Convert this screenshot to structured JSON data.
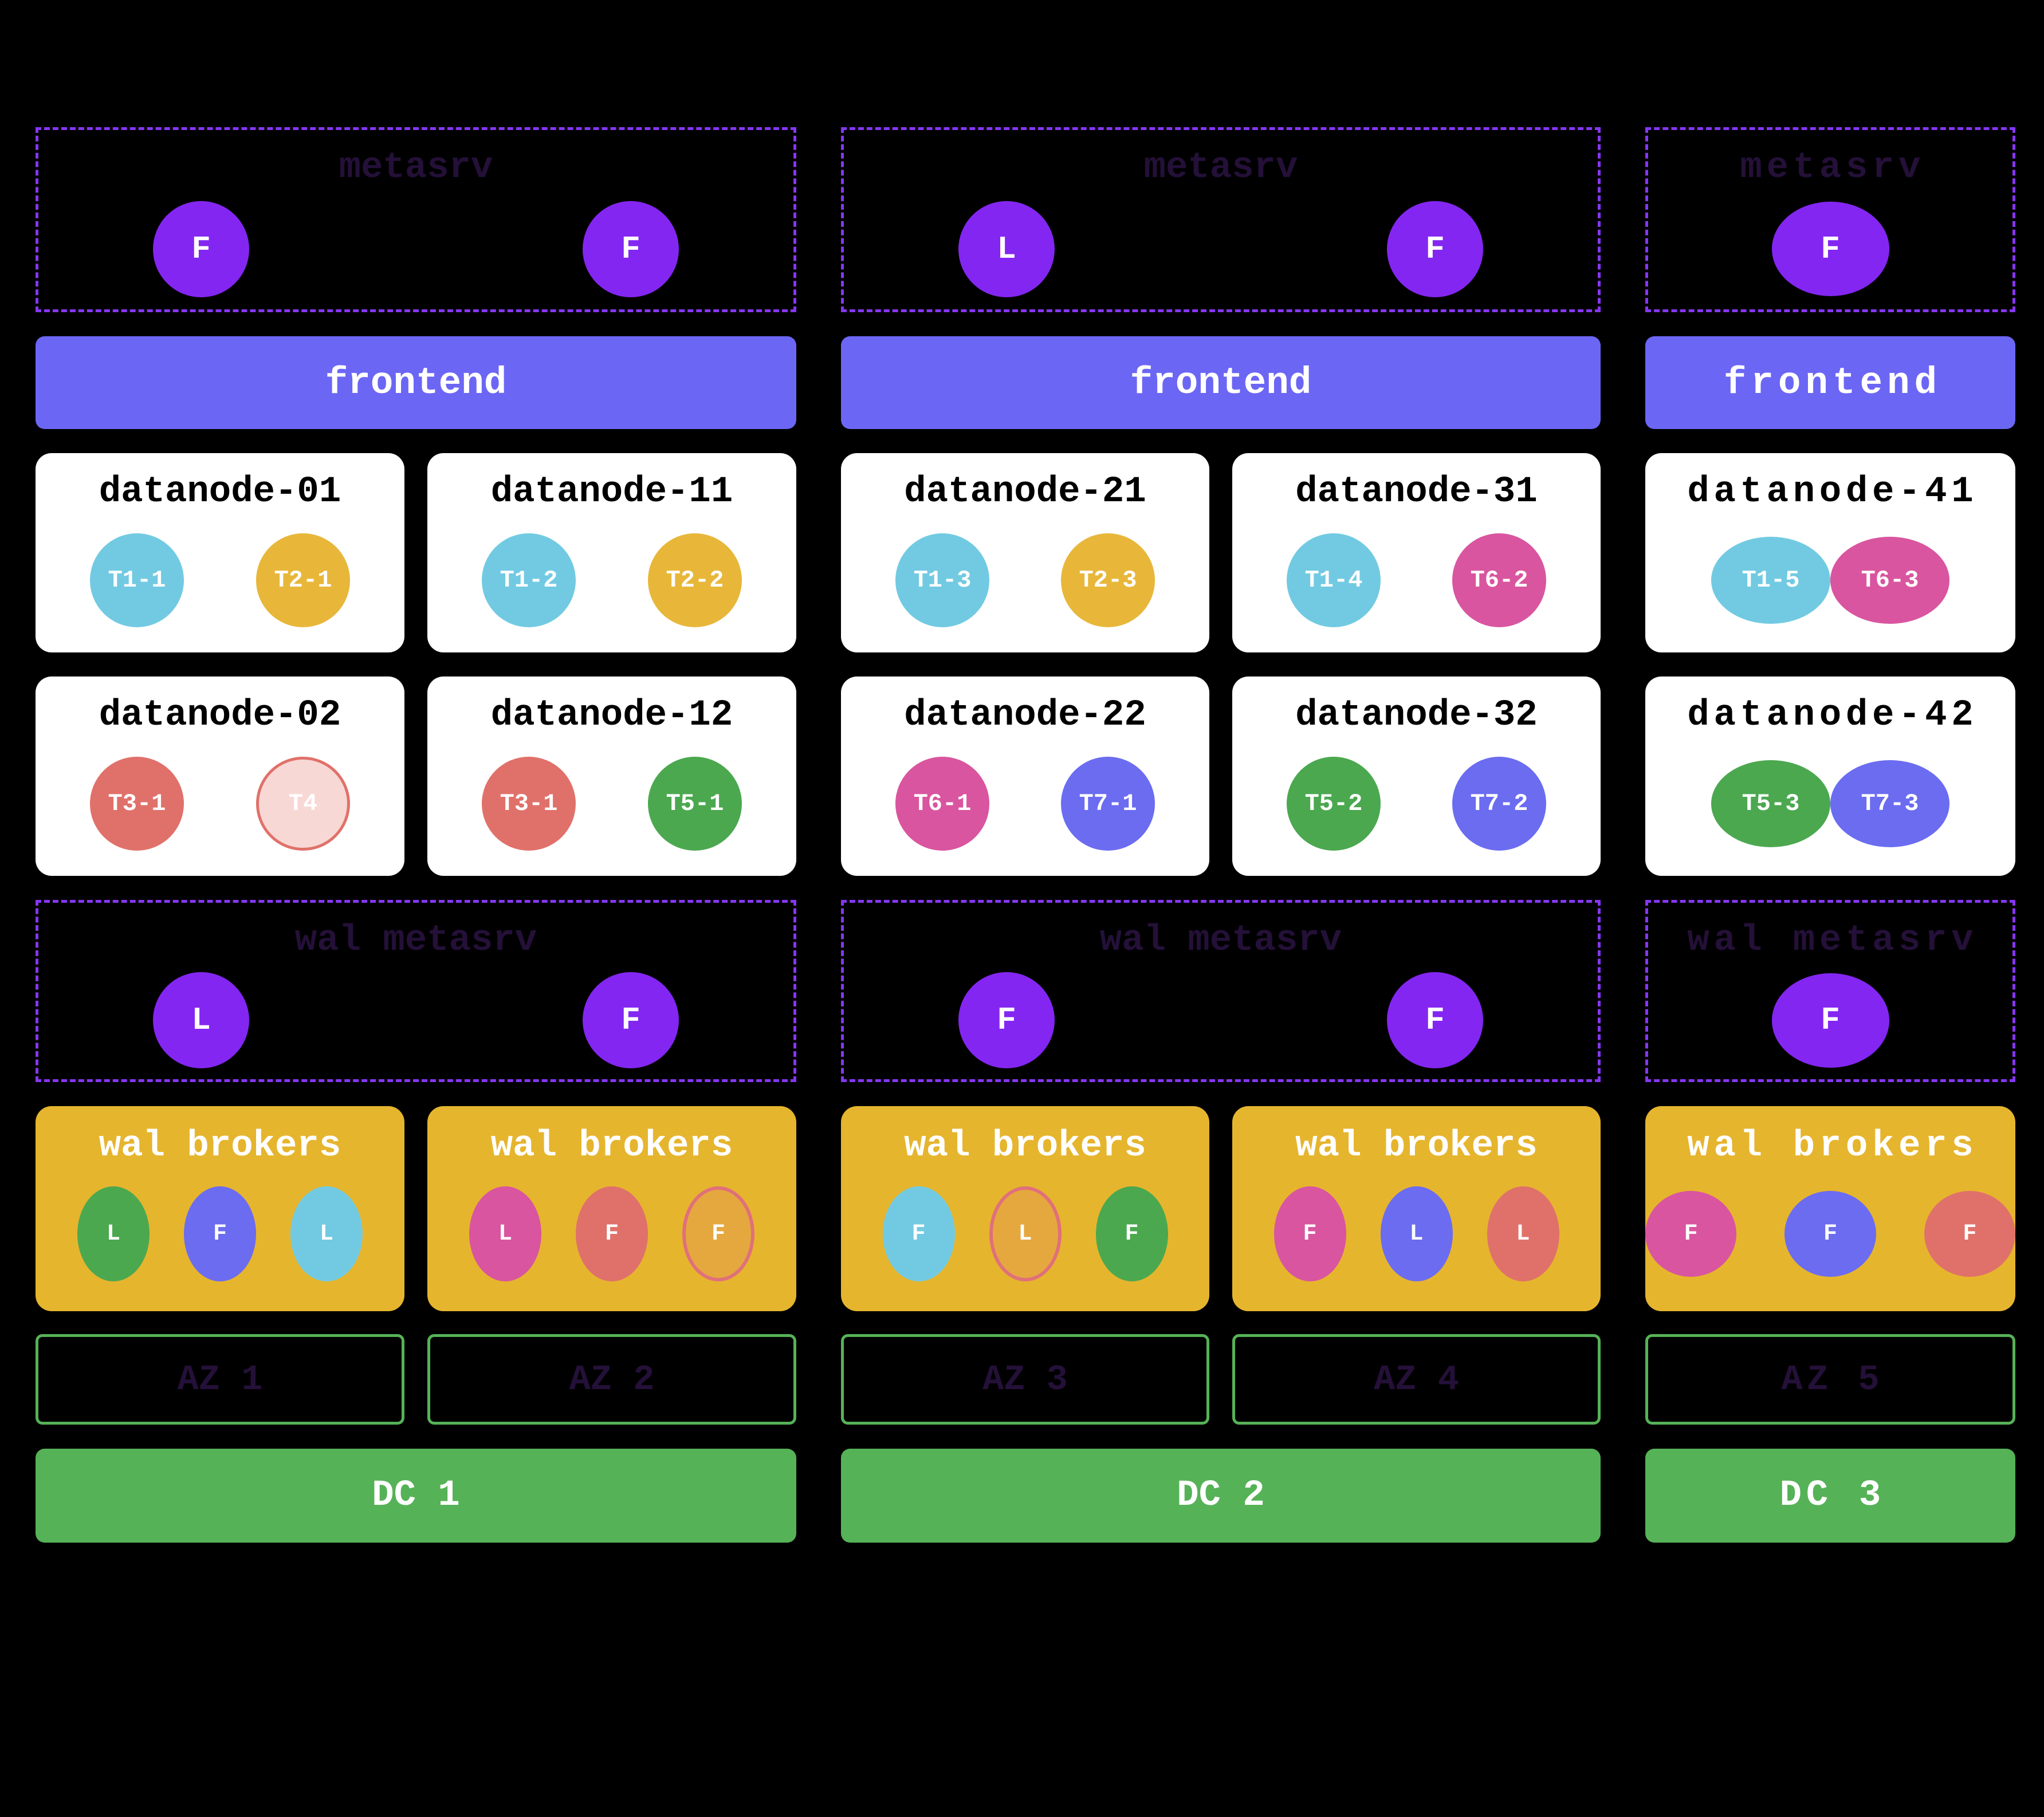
{
  "colors": {
    "background": "#000000",
    "metasrv_border": "#8636f2",
    "metasrv_node_bg": "#8426f2",
    "dark_label_text": "#241038",
    "frontend_bg": "#6c66f5",
    "datanode_bg": "#ffffff",
    "wal_brokers_bg": "#e6b52e",
    "az_border": "#56b257",
    "dc_bg": "#56b257",
    "region_cyan": "#72cae2",
    "region_yellow": "#e8b73a",
    "region_salmon": "#e0716a",
    "region_pink": "#d9559f",
    "region_green": "#4ba84f",
    "region_blue": "#6b6cf0",
    "region_orange": "#e5a83e",
    "region_orange_border": "#e0707a",
    "region_lightpink": "#f8d8d5",
    "region_lightpink_border": "#e0716a"
  },
  "datacenters": [
    {
      "label": "DC 1",
      "metasrv": {
        "title": "metasrv",
        "nodes": [
          {
            "role": "F"
          },
          {
            "role": "F"
          }
        ]
      },
      "frontend_label": "frontend",
      "wal_metasrv": {
        "title": "wal metasrv",
        "nodes": [
          {
            "role": "L"
          },
          {
            "role": "F"
          }
        ]
      },
      "zones": [
        {
          "label": "AZ 1",
          "datanode_top": {
            "name": "datanode-01",
            "regions": [
              {
                "label": "T1-1",
                "color": "cyan"
              },
              {
                "label": "T2-1",
                "color": "yellow"
              }
            ]
          },
          "datanode_bottom": {
            "name": "datanode-02",
            "regions": [
              {
                "label": "T3-1",
                "color": "salmon"
              },
              {
                "label": "T4",
                "color": "lightpink"
              }
            ]
          },
          "wal_brokers": {
            "title": "wal brokers",
            "nodes": [
              {
                "role": "L",
                "color": "green"
              },
              {
                "role": "F",
                "color": "blue"
              },
              {
                "role": "L",
                "color": "cyan"
              }
            ]
          }
        },
        {
          "label": "AZ 2",
          "datanode_top": {
            "name": "datanode-11",
            "regions": [
              {
                "label": "T1-2",
                "color": "cyan"
              },
              {
                "label": "T2-2",
                "color": "yellow"
              }
            ]
          },
          "datanode_bottom": {
            "name": "datanode-12",
            "regions": [
              {
                "label": "T3-1",
                "color": "salmon"
              },
              {
                "label": "T5-1",
                "color": "green"
              }
            ]
          },
          "wal_brokers": {
            "title": "wal brokers",
            "nodes": [
              {
                "role": "L",
                "color": "pink"
              },
              {
                "role": "F",
                "color": "salmon"
              },
              {
                "role": "F",
                "color": "orange"
              }
            ]
          }
        }
      ]
    },
    {
      "label": "DC 2",
      "metasrv": {
        "title": "metasrv",
        "nodes": [
          {
            "role": "L"
          },
          {
            "role": "F"
          }
        ]
      },
      "frontend_label": "frontend",
      "wal_metasrv": {
        "title": "wal metasrv",
        "nodes": [
          {
            "role": "F"
          },
          {
            "role": "F"
          }
        ]
      },
      "zones": [
        {
          "label": "AZ 3",
          "datanode_top": {
            "name": "datanode-21",
            "regions": [
              {
                "label": "T1-3",
                "color": "cyan"
              },
              {
                "label": "T2-3",
                "color": "yellow"
              }
            ]
          },
          "datanode_bottom": {
            "name": "datanode-22",
            "regions": [
              {
                "label": "T6-1",
                "color": "pink"
              },
              {
                "label": "T7-1",
                "color": "blue"
              }
            ]
          },
          "wal_brokers": {
            "title": "wal brokers",
            "nodes": [
              {
                "role": "F",
                "color": "cyan"
              },
              {
                "role": "L",
                "color": "orange"
              },
              {
                "role": "F",
                "color": "green"
              }
            ]
          }
        },
        {
          "label": "AZ 4",
          "datanode_top": {
            "name": "datanode-31",
            "regions": [
              {
                "label": "T1-4",
                "color": "cyan"
              },
              {
                "label": "T6-2",
                "color": "pink"
              }
            ]
          },
          "datanode_bottom": {
            "name": "datanode-32",
            "regions": [
              {
                "label": "T5-2",
                "color": "green"
              },
              {
                "label": "T7-2",
                "color": "blue"
              }
            ]
          },
          "wal_brokers": {
            "title": "wal brokers",
            "nodes": [
              {
                "role": "F",
                "color": "pink"
              },
              {
                "role": "L",
                "color": "blue"
              },
              {
                "role": "L",
                "color": "salmon"
              }
            ]
          }
        }
      ]
    },
    {
      "label": "DC 3",
      "metasrv": {
        "title": "metasrv",
        "nodes": [
          {
            "role": "F"
          }
        ]
      },
      "frontend_label": "frontend",
      "wal_metasrv": {
        "title": "wal metasrv",
        "nodes": [
          {
            "role": "F"
          }
        ]
      },
      "zones": [
        {
          "label": "AZ 5",
          "datanode_top": {
            "name": "datanode-41",
            "regions": [
              {
                "label": "T1-5",
                "color": "cyan"
              },
              {
                "label": "T6-3",
                "color": "pink"
              }
            ]
          },
          "datanode_bottom": {
            "name": "datanode-42",
            "regions": [
              {
                "label": "T5-3",
                "color": "green"
              },
              {
                "label": "T7-3",
                "color": "blue"
              }
            ]
          },
          "wal_brokers": {
            "title": "wal brokers",
            "nodes": [
              {
                "role": "F",
                "color": "pink"
              },
              {
                "role": "F",
                "color": "blue"
              },
              {
                "role": "F",
                "color": "salmon"
              }
            ]
          }
        }
      ]
    }
  ]
}
